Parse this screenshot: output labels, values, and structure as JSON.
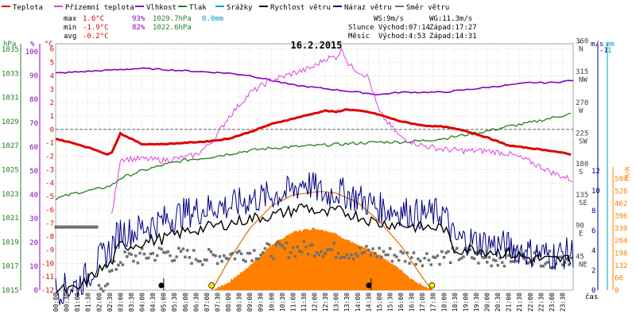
{
  "chart_data": {
    "type": "line",
    "title": "16.2.2015",
    "legend": [
      {
        "label": "Teplota",
        "color": "#e00000"
      },
      {
        "label": "Přízemní teplota",
        "color": "#e040e0"
      },
      {
        "label": "Vlhkost",
        "color": "#8000c0"
      },
      {
        "label": "Tlak",
        "color": "#208020"
      },
      {
        "label": "Srážky",
        "color": "#00a0c0"
      },
      {
        "label": "Rychlost větru",
        "color": "#000000"
      },
      {
        "label": "Náraz větru",
        "color": "#000080"
      },
      {
        "label": "Směr větru",
        "color": "#707070"
      }
    ],
    "stats": {
      "max_label": "max",
      "min_label": "min",
      "avg_label": "avg",
      "max_temp": "1.6°C",
      "max_hum": "93%",
      "max_press": "1029.7hPa",
      "max_rain": "0.0mm",
      "min_temp": "-1.9°C",
      "min_hum": "82%",
      "min_press": "1022.6hPa",
      "avg_temp": "-0.2°C",
      "ws": "WS:9m/s",
      "wg": "WG:11.3m/s",
      "sun_rise": "Slunce Východ:07:14",
      "sun_set": "Západ:17:27",
      "moon_rise": "Měsíc  Východ:4:53",
      "moon_set": "Západ:14:31"
    },
    "axes": {
      "hpa_label": "hPa",
      "pct_label": "%",
      "degc_label": "°C",
      "dir_label": "°",
      "ms_label": "m/s",
      "mm_label": "mm",
      "wm2_label": "W/m²",
      "time_label": "čas",
      "hpa_ticks": [
        "1015",
        "1017",
        "1019",
        "1021",
        "1023",
        "1025",
        "1027",
        "1029",
        "1031",
        "1033",
        "1035"
      ],
      "pct_ticks": [
        "0",
        "10",
        "20",
        "30",
        "40",
        "50",
        "60",
        "70",
        "80",
        "90",
        "100"
      ],
      "temp_ticks": [
        "-12",
        "-11",
        "-10",
        "-9",
        "-8",
        "-7",
        "-6",
        "-5",
        "-4",
        "-3",
        "-2",
        "-1",
        "0",
        "1",
        "2",
        "3",
        "4",
        "5",
        "6"
      ],
      "dir_ticks": [
        {
          "deg": "360",
          "dir": "N"
        },
        {
          "deg": "315",
          "dir": "NW"
        },
        {
          "deg": "270",
          "dir": "W"
        },
        {
          "deg": "225",
          "dir": "SW"
        },
        {
          "deg": "180",
          "dir": "S"
        },
        {
          "deg": "135",
          "dir": "SE"
        },
        {
          "deg": "90",
          "dir": "E"
        },
        {
          "deg": "45",
          "dir": "NE"
        }
      ],
      "ms_ticks": [
        "0",
        "2",
        "4",
        "6",
        "8",
        "10",
        "12"
      ],
      "ms_top": "-1",
      "mm_top": "1",
      "wm2_ticks": [
        "0",
        "66",
        "132",
        "198",
        "264",
        "330",
        "396",
        "462",
        "528",
        "594"
      ],
      "time_ticks": [
        "00:00",
        "00:30",
        "01:00",
        "01:30",
        "02:00",
        "02:30",
        "03:00",
        "03:30",
        "04:00",
        "04:30",
        "05:00",
        "05:30",
        "06:00",
        "06:30",
        "07:00",
        "07:30",
        "08:00",
        "08:30",
        "09:00",
        "09:30",
        "10:00",
        "10:30",
        "11:00",
        "11:30",
        "12:00",
        "12:30",
        "13:00",
        "13:30",
        "14:00",
        "14:30",
        "15:00",
        "15:30",
        "16:00",
        "16:30",
        "17:00",
        "17:30",
        "18:00",
        "18:30",
        "19:00",
        "19:30",
        "20:00",
        "20:30",
        "21:00",
        "21:30",
        "22:00",
        "22:30",
        "23:00",
        "23:30"
      ]
    },
    "temperature_c": {
      "t": [
        0,
        1,
        2,
        2.4,
        2.6,
        3,
        3.5,
        4,
        5,
        6,
        7,
        8,
        9,
        9.5,
        10,
        10.5,
        11,
        11.5,
        12,
        12.5,
        13,
        13.5,
        14,
        14.5,
        15,
        16,
        17,
        18,
        19,
        20,
        21,
        22,
        23,
        24
      ],
      "v": [
        -0.7,
        -1.1,
        -1.6,
        -1.9,
        -1.7,
        -0.3,
        -0.7,
        -1.1,
        -1.1,
        -1.0,
        -0.9,
        -0.7,
        -0.2,
        0.1,
        0.4,
        0.6,
        0.8,
        1.0,
        1.2,
        1.4,
        1.3,
        1.5,
        1.4,
        1.3,
        1.1,
        0.6,
        0.3,
        0.2,
        -0.1,
        -0.6,
        -1.2,
        -1.4,
        -1.6,
        -1.9
      ]
    },
    "ground_temp_c": {
      "t": [
        2.6,
        2.8,
        3,
        4,
        5,
        5.5,
        6,
        6.5,
        7,
        7.5,
        8,
        8.5,
        9,
        9.5,
        10,
        10.5,
        11,
        11.5,
        12,
        12.5,
        13,
        13.3,
        13.6,
        14,
        14.5,
        15,
        15.5,
        16,
        17,
        18,
        19,
        20,
        21,
        22,
        23,
        24
      ],
      "v": [
        -6.5,
        -4.3,
        -2.2,
        -2.2,
        -2.3,
        -2.2,
        -2.1,
        -1.9,
        -1.3,
        -0.4,
        0.9,
        1.8,
        2.7,
        3.2,
        3.7,
        3.9,
        4.2,
        4.4,
        4.7,
        5.3,
        5.4,
        6.0,
        4.8,
        4.4,
        3.9,
        1.3,
        0.3,
        -0.6,
        -1.2,
        -1.5,
        -1.6,
        -1.6,
        -1.8,
        -2.4,
        -3.2,
        -3.8
      ]
    },
    "humidity_pct": {
      "t": [
        0,
        2,
        4,
        6,
        8,
        9,
        10,
        11,
        12,
        13,
        14,
        15,
        16,
        17,
        18,
        19,
        20,
        21,
        22,
        23,
        24
      ],
      "v": [
        91,
        92,
        93,
        92,
        91,
        90,
        88,
        86,
        85,
        84,
        83,
        82,
        83,
        83,
        83,
        84,
        85,
        86,
        87,
        87,
        88
      ]
    },
    "pressure_hpa": {
      "t": [
        0,
        1,
        2,
        2.6,
        3,
        4,
        5,
        6,
        7,
        8,
        9,
        10,
        11,
        12,
        13,
        14,
        15,
        16,
        17,
        18,
        19,
        20,
        21,
        22,
        23,
        24
      ],
      "v": [
        1022.6,
        1023.1,
        1023.4,
        1023.7,
        1024.3,
        1024.9,
        1025.4,
        1025.8,
        1026.0,
        1026.3,
        1026.6,
        1026.8,
        1026.9,
        1027.0,
        1027.1,
        1027.2,
        1027.3,
        1027.3,
        1027.4,
        1027.6,
        1027.9,
        1028.2,
        1028.6,
        1028.9,
        1029.3,
        1029.7
      ]
    },
    "wind_speed_ms": {
      "t": [
        0,
        1,
        1.5,
        2,
        2.5,
        3,
        3.5,
        4,
        5,
        6,
        7,
        7.5,
        8,
        9,
        10,
        11,
        11.5,
        12,
        12.5,
        13,
        14,
        15,
        15.5,
        16,
        17,
        18,
        18.5,
        19,
        20,
        21,
        22,
        23,
        24
      ],
      "v": [
        0,
        0,
        1,
        2,
        2.5,
        4.5,
        4.5,
        4.8,
        5.2,
        5.9,
        6.3,
        6.5,
        6.7,
        7.2,
        7.5,
        8.0,
        8.5,
        8.0,
        7.6,
        8.0,
        7.5,
        6.7,
        6.7,
        6.6,
        6.3,
        6.3,
        4.0,
        4.2,
        4.0,
        3.7,
        3.2,
        3.0,
        3.2
      ]
    },
    "wind_gust_ms": {
      "t": [
        0,
        1,
        1.5,
        2,
        2.5,
        3,
        3.5,
        4,
        5,
        6,
        7,
        7.5,
        8,
        9,
        10,
        11,
        11.5,
        12,
        12.5,
        13,
        14,
        15,
        15.5,
        16,
        17,
        18,
        18.5,
        19,
        20,
        21,
        22,
        23,
        24
      ],
      "v": [
        0,
        0.5,
        1.5,
        3,
        4,
        6,
        5.8,
        6.3,
        7.0,
        7.8,
        8.2,
        8.5,
        8.4,
        9.1,
        9.5,
        10,
        11,
        10.3,
        9.5,
        10.0,
        9.3,
        8.3,
        8.1,
        8.0,
        7.6,
        7.8,
        5.0,
        5.1,
        4.7,
        4.4,
        3.8,
        3.5,
        3.8
      ]
    },
    "wind_dir_deg": {
      "t": [
        0,
        2,
        3,
        4,
        5,
        6,
        7,
        8,
        9,
        10,
        11,
        12,
        13,
        14,
        15,
        16,
        17,
        18,
        19,
        20,
        21,
        22,
        23,
        24
      ],
      "v": [
        0,
        0,
        45,
        50,
        55,
        50,
        48,
        52,
        55,
        58,
        60,
        62,
        58,
        55,
        55,
        50,
        48,
        50,
        52,
        45,
        48,
        50,
        45,
        48
      ]
    },
    "solar_wm2": {
      "t": [
        7.25,
        8,
        9,
        10,
        11,
        11.5,
        12,
        12.5,
        13,
        14,
        15,
        16,
        16.5,
        17.45
      ],
      "v": [
        0,
        40,
        130,
        240,
        310,
        322,
        330,
        320,
        300,
        240,
        190,
        110,
        60,
        0
      ]
    },
    "solar_theoretical_wm2": {
      "t": [
        7.25,
        8,
        9,
        10,
        11,
        12,
        12.35,
        13,
        14,
        15,
        16,
        17,
        17.45
      ],
      "v": [
        0,
        155,
        330,
        450,
        510,
        525,
        528,
        520,
        470,
        370,
        240,
        70,
        0
      ]
    },
    "markers": [
      {
        "t": 4.9,
        "kind": "moon",
        "label": "Měsíc Východ"
      },
      {
        "t": 7.23,
        "kind": "sun",
        "label": "Slunce Východ"
      },
      {
        "t": 14.52,
        "kind": "moon",
        "label": "Západ"
      },
      {
        "t": 17.45,
        "kind": "sun",
        "label": "Západ"
      }
    ],
    "colors": {
      "temp": "#e00000",
      "ground": "#e040e0",
      "hum": "#8000c0",
      "press": "#208020",
      "rain": "#00a0c0",
      "speed": "#000000",
      "gust": "#000080",
      "dir": "#707070",
      "solar": "#ff8000",
      "solar_line": "#e07000",
      "grid": "#c8c8c8"
    }
  }
}
